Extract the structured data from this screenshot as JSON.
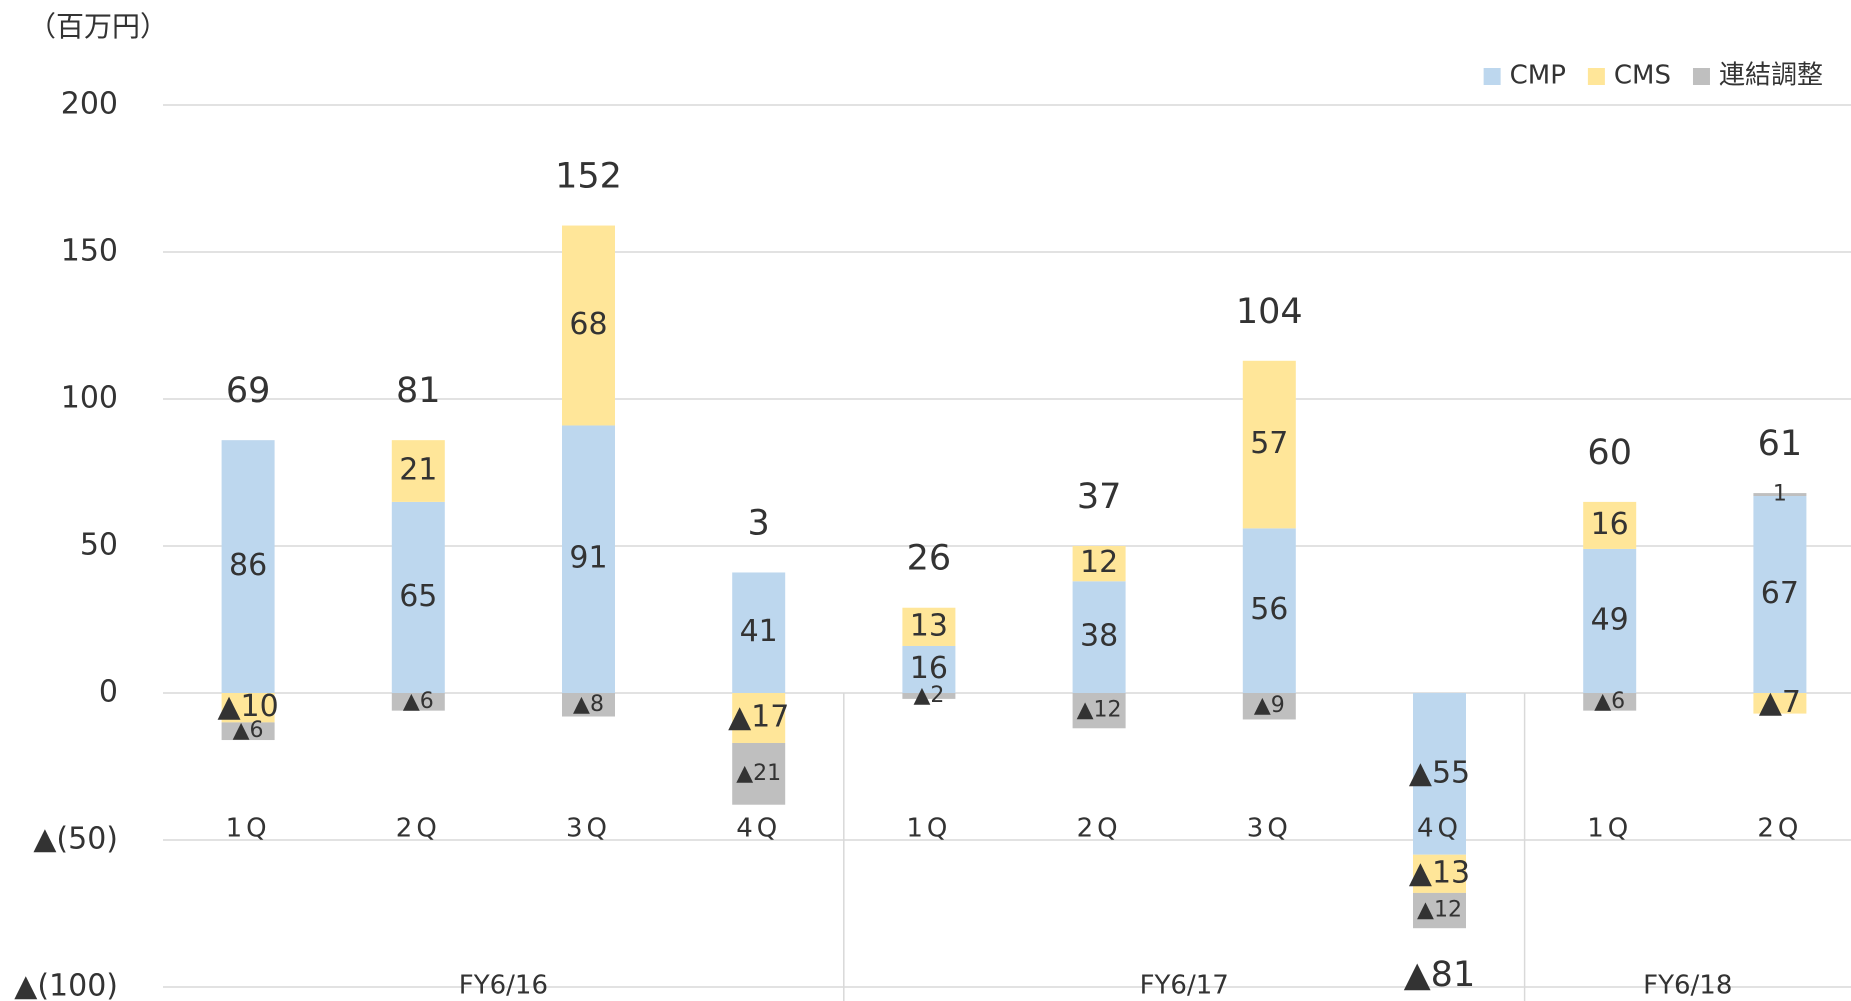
{
  "chart_data": {
    "type": "stacked_bar",
    "unit_label": "（百万円）",
    "categories": [
      "1Q",
      "2Q",
      "3Q",
      "4Q",
      "1Q",
      "2Q",
      "3Q",
      "4Q",
      "1Q",
      "2Q"
    ],
    "groups": [
      {
        "label": "FY6/16",
        "size": 4
      },
      {
        "label": "FY6/17",
        "size": 4
      },
      {
        "label": "FY6/18",
        "size": 2
      }
    ],
    "series": [
      {
        "name": "CMP",
        "color": "#BDD7EE",
        "label_color": "#333333",
        "values": [
          86,
          65,
          91,
          41,
          16,
          38,
          56,
          -55,
          49,
          67
        ],
        "value_labels": [
          "86",
          "65",
          "91",
          "41",
          "16",
          "38",
          "56",
          "▲55",
          "49",
          "67"
        ]
      },
      {
        "name": "CMS",
        "color": "#FFE699",
        "label_color": "#333333",
        "values": [
          -10,
          21,
          68,
          -17,
          13,
          12,
          57,
          -13,
          16,
          -7
        ],
        "value_labels": [
          "▲10",
          "21",
          "68",
          "▲17",
          "13",
          "12",
          "57",
          "▲13",
          "16",
          "▲7"
        ]
      },
      {
        "name": "連結調整",
        "color": "#BFBFBF",
        "label_color": "#7F7F7F",
        "values": [
          -6,
          -6,
          -8,
          -21,
          -2,
          -12,
          -9,
          -12,
          -6,
          1
        ],
        "value_labels": [
          "▲6",
          "▲6",
          "▲8",
          "▲21",
          "▲2",
          "▲12",
          "▲9",
          "▲12",
          "▲6",
          "1"
        ]
      }
    ],
    "totals": {
      "color": "#ED7D31",
      "values": [
        69,
        81,
        152,
        3,
        26,
        37,
        104,
        -81,
        60,
        61
      ],
      "value_labels": [
        "69",
        "81",
        "152",
        "3",
        "26",
        "37",
        "104",
        "▲81",
        "60",
        "61"
      ]
    },
    "ylim": [
      -100,
      200
    ],
    "yticks": [
      200,
      150,
      100,
      50,
      0,
      {
        "value": -50,
        "label": "▲(50)"
      },
      {
        "value": -100,
        "label": "▲(100)"
      }
    ],
    "grid": true,
    "legend": "top-right"
  }
}
